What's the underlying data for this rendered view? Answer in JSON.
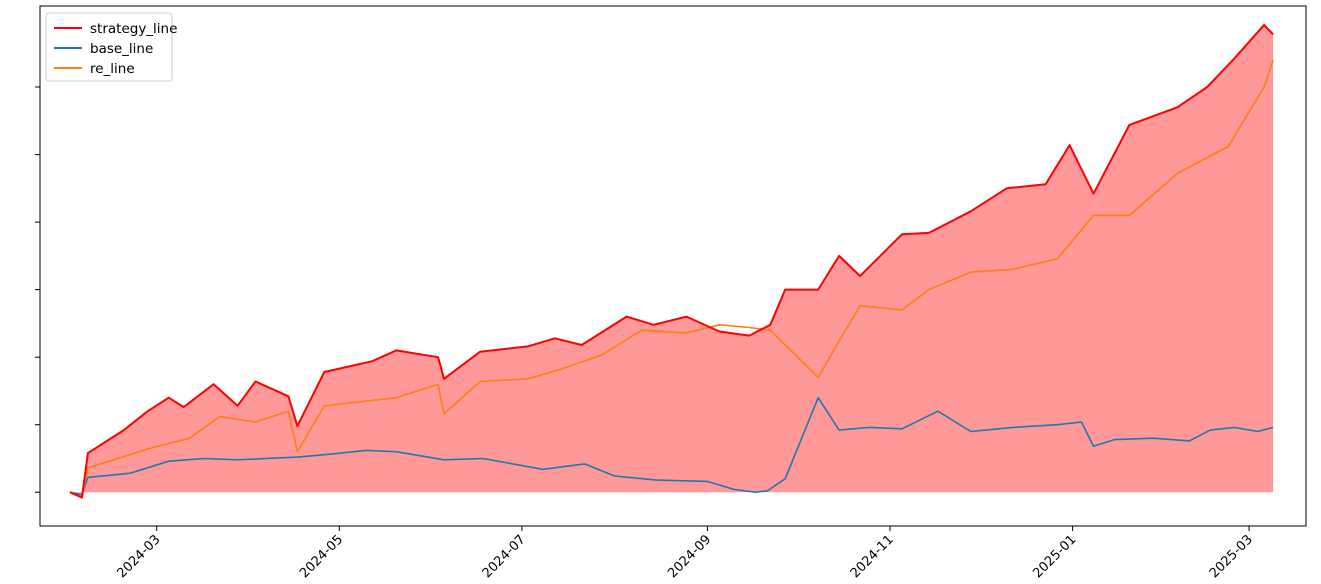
{
  "chart_data": {
    "type": "line",
    "xlim": [
      "2024-01-22",
      "2025-03-20"
    ],
    "ylim": [
      -0.25,
      3.6
    ],
    "x_ticks": [
      "2024-03",
      "2024-05",
      "2024-07",
      "2024-09",
      "2024-11",
      "2025-01",
      "2025-03"
    ],
    "x_tick_rotation": 45,
    "y_ticks": [
      0,
      0.5,
      1,
      1.5,
      2,
      2.5,
      3
    ],
    "y_tick_labels_visible": false,
    "grid": false,
    "legend": "top-left",
    "fill_between": {
      "series": "strategy_line",
      "baseline": 0,
      "color": "#ff9898"
    },
    "series": [
      {
        "name": "strategy_line",
        "color": "#ff0000",
        "x": [
          "2024-02-01",
          "2024-02-05",
          "2024-02-07",
          "2024-02-19",
          "2024-02-27",
          "2024-03-05",
          "2024-03-10",
          "2024-03-20",
          "2024-03-28",
          "2024-04-03",
          "2024-04-14",
          "2024-04-17",
          "2024-04-26",
          "2024-05-12",
          "2024-05-20",
          "2024-06-03",
          "2024-06-05",
          "2024-06-17",
          "2024-07-03",
          "2024-07-12",
          "2024-07-21",
          "2024-08-05",
          "2024-08-14",
          "2024-08-25",
          "2024-09-05",
          "2024-09-15",
          "2024-09-22",
          "2024-09-27",
          "2024-10-08",
          "2024-10-15",
          "2024-10-22",
          "2024-11-05",
          "2024-11-14",
          "2024-11-28",
          "2024-12-10",
          "2024-12-23",
          "2024-12-31",
          "2025-01-08",
          "2025-01-20",
          "2025-02-05",
          "2025-02-15",
          "2025-02-24",
          "2025-03-06",
          "2025-03-09"
        ],
        "values": [
          0,
          -0.04,
          0.29,
          0.46,
          0.6,
          0.7,
          0.63,
          0.8,
          0.64,
          0.82,
          0.71,
          0.49,
          0.89,
          0.97,
          1.05,
          1.0,
          0.84,
          1.04,
          1.08,
          1.14,
          1.09,
          1.3,
          1.24,
          1.3,
          1.19,
          1.16,
          1.24,
          1.5,
          1.5,
          1.75,
          1.6,
          1.91,
          1.92,
          2.08,
          2.25,
          2.28,
          2.57,
          2.21,
          2.72,
          2.85,
          3.0,
          3.21,
          3.46,
          3.39
        ]
      },
      {
        "name": "base_line",
        "color": "#1f77b4",
        "x": [
          "2024-02-01",
          "2024-02-05",
          "2024-02-07",
          "2024-02-21",
          "2024-03-05",
          "2024-03-17",
          "2024-03-28",
          "2024-04-17",
          "2024-04-27",
          "2024-05-10",
          "2024-05-20",
          "2024-06-05",
          "2024-06-18",
          "2024-07-08",
          "2024-07-22",
          "2024-08-01",
          "2024-08-15",
          "2024-09-01",
          "2024-09-10",
          "2024-09-17",
          "2024-09-21",
          "2024-09-27",
          "2024-10-08",
          "2024-10-15",
          "2024-10-25",
          "2024-11-05",
          "2024-11-17",
          "2024-11-28",
          "2024-12-12",
          "2024-12-27",
          "2025-01-04",
          "2025-01-08",
          "2025-01-15",
          "2025-01-28",
          "2025-02-09",
          "2025-02-16",
          "2025-02-24",
          "2025-03-04",
          "2025-03-09"
        ],
        "values": [
          0,
          -0.02,
          0.11,
          0.14,
          0.23,
          0.25,
          0.24,
          0.26,
          0.28,
          0.31,
          0.3,
          0.24,
          0.25,
          0.17,
          0.21,
          0.12,
          0.09,
          0.08,
          0.02,
          0.0,
          0.01,
          0.1,
          0.7,
          0.46,
          0.48,
          0.47,
          0.6,
          0.45,
          0.48,
          0.5,
          0.52,
          0.34,
          0.39,
          0.4,
          0.38,
          0.46,
          0.48,
          0.45,
          0.48
        ]
      },
      {
        "name": "re_line",
        "color": "#ff7f0e",
        "x": [
          "2024-02-01",
          "2024-02-05",
          "2024-02-07",
          "2024-02-27",
          "2024-03-12",
          "2024-03-22",
          "2024-04-03",
          "2024-04-14",
          "2024-04-17",
          "2024-04-26",
          "2024-05-20",
          "2024-06-03",
          "2024-06-05",
          "2024-06-17",
          "2024-07-03",
          "2024-07-14",
          "2024-07-28",
          "2024-08-10",
          "2024-08-25",
          "2024-09-05",
          "2024-09-15",
          "2024-09-22",
          "2024-10-08",
          "2024-10-15",
          "2024-10-22",
          "2024-11-05",
          "2024-11-14",
          "2024-11-28",
          "2024-12-12",
          "2024-12-27",
          "2025-01-08",
          "2025-01-20",
          "2025-02-05",
          "2025-02-22",
          "2025-03-06",
          "2025-03-09"
        ],
        "values": [
          0,
          -0.04,
          0.18,
          0.32,
          0.4,
          0.56,
          0.52,
          0.6,
          0.3,
          0.64,
          0.7,
          0.8,
          0.58,
          0.82,
          0.84,
          0.91,
          1.02,
          1.2,
          1.18,
          1.24,
          1.22,
          1.2,
          0.85,
          1.12,
          1.38,
          1.35,
          1.5,
          1.63,
          1.65,
          1.73,
          2.05,
          2.05,
          2.36,
          2.56,
          3.0,
          3.2
        ]
      }
    ]
  }
}
